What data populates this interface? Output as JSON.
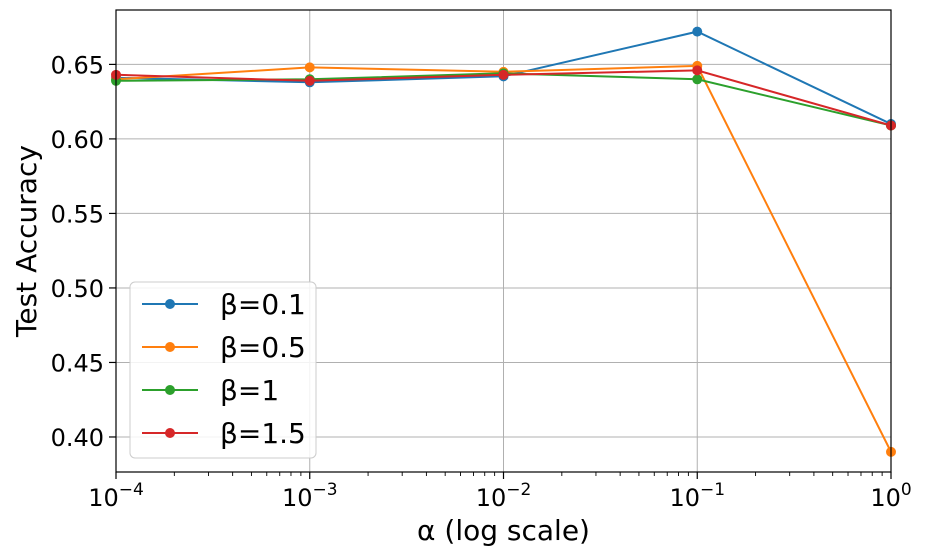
{
  "chart_data": {
    "type": "line",
    "title": "",
    "xlabel": "α (log scale)",
    "ylabel": "Test Accuracy",
    "xscale": "log",
    "x": [
      0.0001,
      0.001,
      0.01,
      0.1,
      1
    ],
    "xlim": [
      0.0001,
      1
    ],
    "ylim": [
      0.3765,
      0.6865
    ],
    "grid": true,
    "legend_position": "lower-left",
    "x_ticks": [
      {
        "value": 0.0001,
        "base": "10",
        "exp": "−4"
      },
      {
        "value": 0.001,
        "base": "10",
        "exp": "−3"
      },
      {
        "value": 0.01,
        "base": "10",
        "exp": "−2"
      },
      {
        "value": 0.1,
        "base": "10",
        "exp": "−1"
      },
      {
        "value": 1,
        "base": "10",
        "exp": "0"
      }
    ],
    "y_ticks": [
      {
        "value": 0.4,
        "label": "0.40"
      },
      {
        "value": 0.45,
        "label": "0.45"
      },
      {
        "value": 0.5,
        "label": "0.50"
      },
      {
        "value": 0.55,
        "label": "0.55"
      },
      {
        "value": 0.6,
        "label": "0.60"
      },
      {
        "value": 0.65,
        "label": "0.65"
      }
    ],
    "series": [
      {
        "name": "β=0.1",
        "color": "#1f77b4",
        "values": [
          0.641,
          0.638,
          0.642,
          0.672,
          0.61
        ]
      },
      {
        "name": "β=0.5",
        "color": "#ff7f0e",
        "values": [
          0.64,
          0.648,
          0.645,
          0.649,
          0.39
        ]
      },
      {
        "name": "β=1",
        "color": "#2ca02c",
        "values": [
          0.639,
          0.64,
          0.644,
          0.64,
          0.609
        ]
      },
      {
        "name": "β=1.5",
        "color": "#d62728",
        "values": [
          0.643,
          0.639,
          0.643,
          0.646,
          0.609
        ]
      }
    ]
  }
}
